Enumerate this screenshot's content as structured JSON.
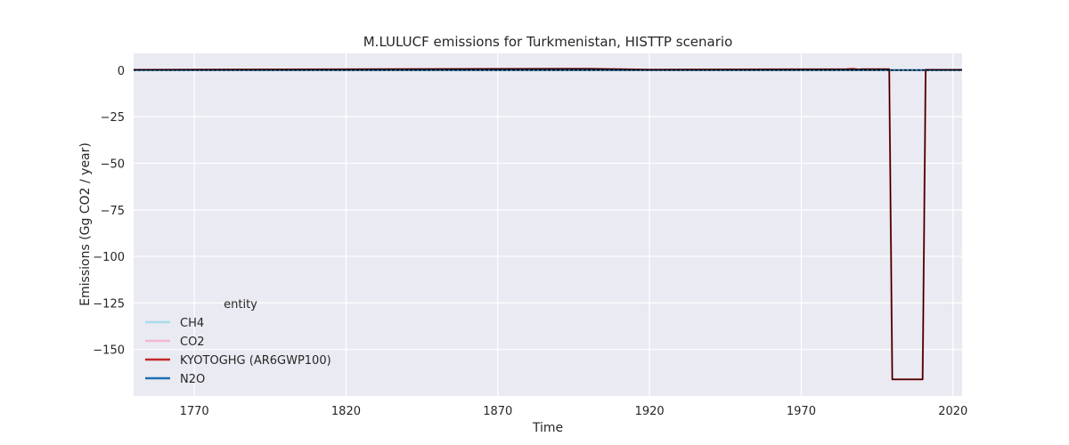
{
  "chart_data": {
    "type": "line",
    "title": "M.LULUCF emissions for Turkmenistan, HISTTP scenario",
    "xlabel": "Time",
    "ylabel": "Emissions (Gg CO2 / year)",
    "xlim": [
      1750,
      2023
    ],
    "ylim": [
      -175,
      9
    ],
    "xticks": [
      1770,
      1820,
      1870,
      1920,
      1970,
      2020
    ],
    "yticks": [
      0,
      -25,
      -50,
      -75,
      -100,
      -125,
      -150
    ],
    "ytick_labels": [
      "0",
      "−25",
      "−50",
      "−75",
      "−100",
      "−125",
      "−150"
    ],
    "grid": true,
    "legend": {
      "title": "entity",
      "placement": "lower-left",
      "entries": [
        {
          "label": "CH4",
          "color": "#a6dce8"
        },
        {
          "label": "CO2",
          "color": "#f4b6cf"
        },
        {
          "label": "KYOTOGHG (AR6GWP100)",
          "color": "#c62828"
        },
        {
          "label": "N2O",
          "color": "#1f6fb0"
        }
      ]
    },
    "series": [
      {
        "name": "CH4",
        "color": "#a6dce8",
        "x": [
          1750,
          2023
        ],
        "y": [
          0,
          0
        ]
      },
      {
        "name": "CO2",
        "color": "#f4b6cf",
        "x": [
          1750,
          1900,
          1920,
          1985,
          1987,
          1989,
          1990,
          1999,
          2000,
          2010,
          2011,
          2023
        ],
        "y": [
          0.2,
          0.8,
          0.3,
          0.5,
          0.8,
          0.3,
          0.5,
          0.5,
          -166,
          -166,
          0.2,
          0.2
        ]
      },
      {
        "name": "KYOTOGHG (AR6GWP100)",
        "color": "#c62828",
        "x": [
          1750,
          1900,
          1920,
          1985,
          1987,
          1989,
          1990,
          1999,
          2000,
          2010,
          2011,
          2023
        ],
        "y": [
          0.2,
          0.8,
          0.3,
          0.5,
          0.8,
          0.3,
          0.5,
          0.5,
          -166,
          -166,
          0.2,
          0.2
        ]
      },
      {
        "name": "N2O",
        "color": "#1f6fb0",
        "x": [
          1750,
          2023
        ],
        "y": [
          0,
          0
        ]
      }
    ],
    "overlays": [
      {
        "style": "solid",
        "color": "#000000",
        "x": [
          1750,
          1900,
          1920,
          1990,
          1999,
          2000,
          2010,
          2011,
          2023
        ],
        "y": [
          0.2,
          0.8,
          0.3,
          0.5,
          0.5,
          -166,
          -166,
          0.2,
          0.2
        ]
      },
      {
        "style": "dashed",
        "color": "#000000",
        "x": [
          1750,
          2023
        ],
        "y": [
          0,
          0
        ]
      }
    ]
  }
}
